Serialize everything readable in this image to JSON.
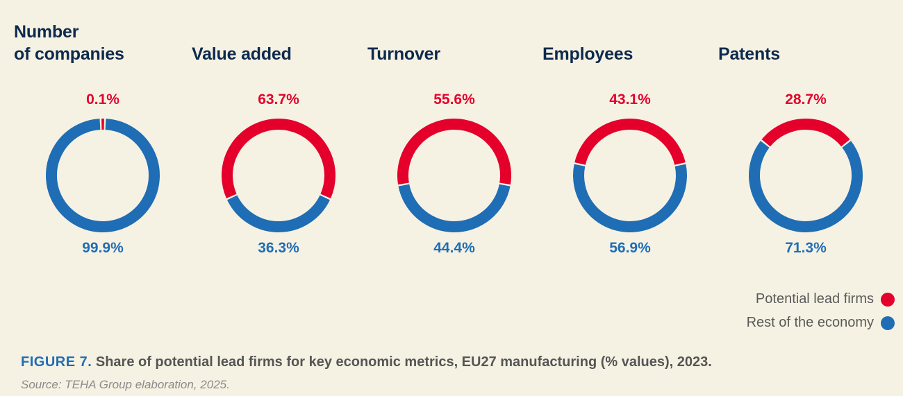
{
  "colors": {
    "lead": "#e4002b",
    "rest": "#1f6db5",
    "background": "#f6f2e3"
  },
  "chart_data": {
    "type": "pie",
    "subtype": "donut",
    "series_names": [
      "Potential lead firms",
      "Rest of the economy"
    ],
    "charts": [
      {
        "title_lines": [
          "Number",
          "of companies"
        ],
        "lead": 0.1,
        "rest": 99.9,
        "lead_label": "0.1%",
        "rest_label": "99.9%"
      },
      {
        "title_lines": [
          "Value added"
        ],
        "lead": 63.7,
        "rest": 36.3,
        "lead_label": "63.7%",
        "rest_label": "36.3%"
      },
      {
        "title_lines": [
          "Turnover"
        ],
        "lead": 55.6,
        "rest": 44.4,
        "lead_label": "55.6%",
        "rest_label": "44.4%"
      },
      {
        "title_lines": [
          "Employees"
        ],
        "lead": 43.1,
        "rest": 56.9,
        "lead_label": "43.1%",
        "rest_label": "56.9%"
      },
      {
        "title_lines": [
          "Patents"
        ],
        "lead": 28.7,
        "rest": 71.3,
        "lead_label": "28.7%",
        "rest_label": "71.3%"
      }
    ],
    "legend": [
      "Potential lead firms",
      "Rest of the economy"
    ],
    "legend_position": "bottom-right"
  },
  "caption": {
    "figure_label": "FIGURE 7.",
    "text": " Share of potential lead firms for key economic metrics, EU27 manufacturing (% values), 2023."
  },
  "source": "Source: TEHA Group elaboration, 2025."
}
